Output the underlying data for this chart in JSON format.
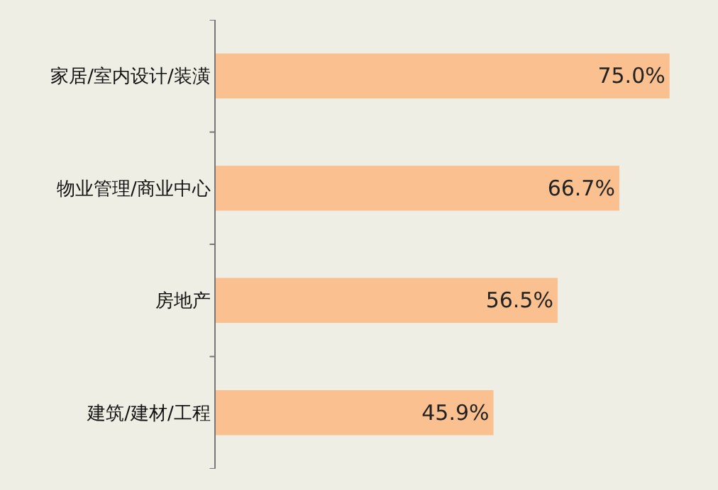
{
  "chart_data": {
    "type": "bar",
    "orientation": "horizontal",
    "categories": [
      "家居/室内设计/装潢",
      "物业管理/商业中心",
      "房地产",
      "建筑/建材/工程"
    ],
    "values": [
      75.0,
      66.7,
      56.5,
      45.9
    ],
    "value_labels": [
      "75.0%",
      "66.7%",
      "56.5%",
      "45.9%"
    ],
    "color": "#fac090",
    "xlim": [
      0,
      83
    ],
    "tick_labels": "y"
  }
}
